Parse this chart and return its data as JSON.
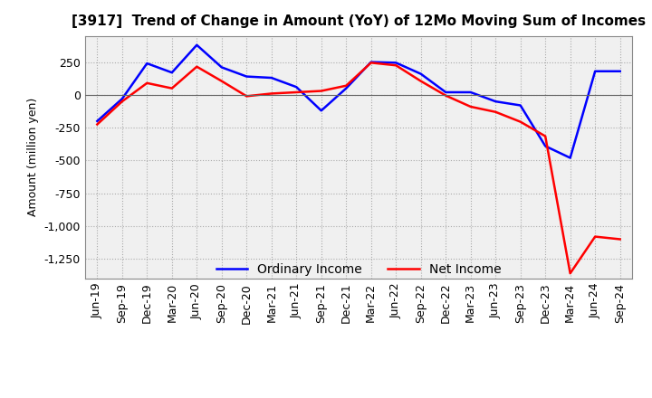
{
  "title": "[3917]  Trend of Change in Amount (YoY) of 12Mo Moving Sum of Incomes",
  "ylabel": "Amount (million yen)",
  "x_labels": [
    "Jun-19",
    "Sep-19",
    "Dec-19",
    "Mar-20",
    "Jun-20",
    "Sep-20",
    "Dec-20",
    "Mar-21",
    "Jun-21",
    "Sep-21",
    "Dec-21",
    "Mar-22",
    "Jun-22",
    "Sep-22",
    "Dec-22",
    "Mar-23",
    "Jun-23",
    "Sep-23",
    "Dec-23",
    "Mar-24",
    "Jun-24",
    "Sep-24"
  ],
  "ordinary_income": [
    -200,
    -30,
    240,
    170,
    380,
    210,
    140,
    130,
    60,
    -120,
    50,
    250,
    245,
    160,
    20,
    20,
    -50,
    -80,
    -390,
    -480,
    180,
    180
  ],
  "net_income": [
    -225,
    -50,
    90,
    50,
    215,
    105,
    -10,
    10,
    20,
    30,
    70,
    245,
    225,
    105,
    -5,
    -90,
    -130,
    -205,
    -315,
    -1360,
    -1080,
    -1100
  ],
  "ordinary_color": "#0000ff",
  "net_color": "#ff0000",
  "ylim": [
    -1400,
    450
  ],
  "yticks": [
    250,
    0,
    -250,
    -500,
    -750,
    -1000,
    -1250
  ],
  "background_color": "#ffffff",
  "plot_bg_color": "#f0f0f0",
  "grid_color": "#aaaaaa"
}
